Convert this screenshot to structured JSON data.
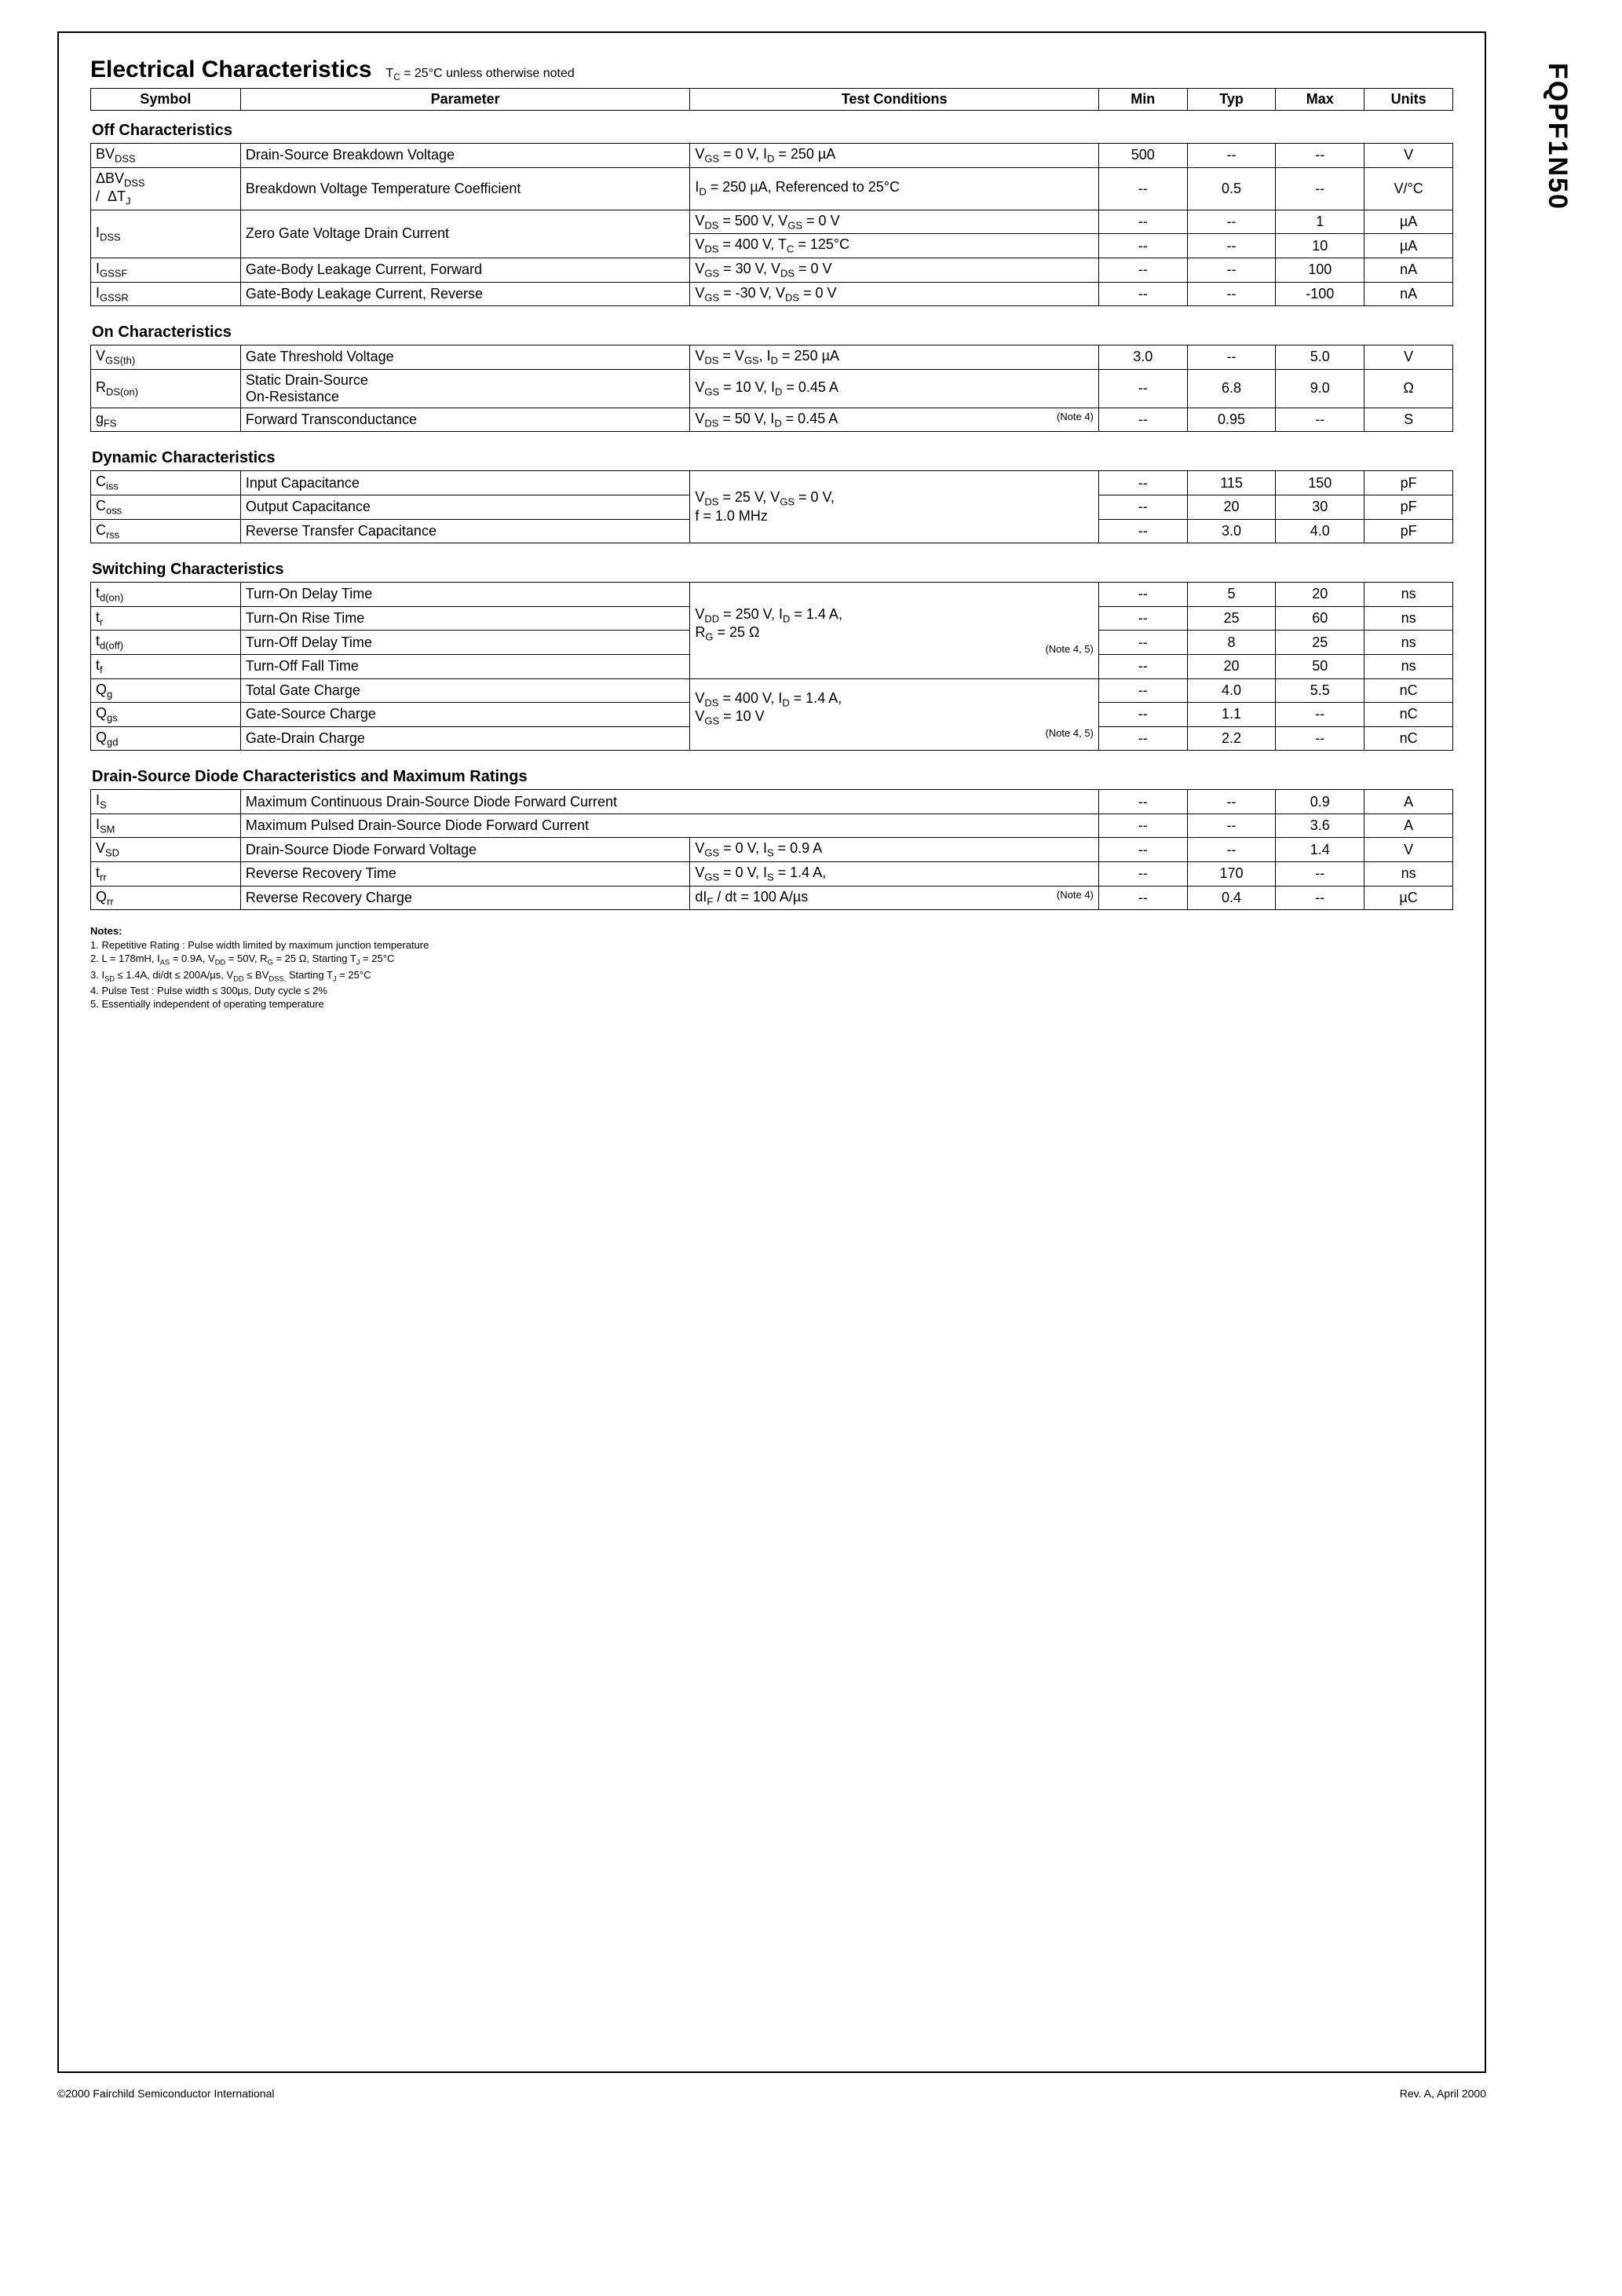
{
  "part_number": "FQPF1N50",
  "title": "Electrical Characteristics",
  "title_condition": "T_C = 25°C unless otherwise noted",
  "header": {
    "symbol": "Symbol",
    "parameter": "Parameter",
    "test_conditions": "Test Conditions",
    "min": "Min",
    "typ": "Typ",
    "max": "Max",
    "units": "Units"
  },
  "sections": {
    "off": {
      "title": "Off Characteristics"
    },
    "on": {
      "title": "On Characteristics"
    },
    "dyn": {
      "title": "Dynamic Characteristics"
    },
    "sw": {
      "title": "Switching Characteristics"
    },
    "diode": {
      "title": "Drain-Source Diode Characteristics and Maximum Ratings"
    }
  },
  "rows": {
    "bvdss": {
      "symbol": "BV_DSS",
      "param": "Drain-Source Breakdown Voltage",
      "cond": "V_GS = 0 V, I_D = 250 µA",
      "min": "500",
      "typ": "--",
      "max": "--",
      "units": "V"
    },
    "dbvdss": {
      "symbol": "ΔBV_DSS / ΔT_J",
      "param": "Breakdown Voltage Temperature Coefficient",
      "cond": "I_D = 250 µA, Referenced to 25°C",
      "min": "--",
      "typ": "0.5",
      "max": "--",
      "units": "V/°C"
    },
    "idss1": {
      "symbol": "I_DSS",
      "param": "Zero Gate Voltage Drain Current",
      "cond": "V_DS = 500 V, V_GS = 0 V",
      "min": "--",
      "typ": "--",
      "max": "1",
      "units": "µA"
    },
    "idss2": {
      "cond": "V_DS = 400 V, T_C = 125°C",
      "min": "--",
      "typ": "--",
      "max": "10",
      "units": "µA"
    },
    "igssf": {
      "symbol": "I_GSSF",
      "param": "Gate-Body Leakage Current, Forward",
      "cond": "V_GS = 30 V, V_DS = 0 V",
      "min": "--",
      "typ": "--",
      "max": "100",
      "units": "nA"
    },
    "igssr": {
      "symbol": "I_GSSR",
      "param": "Gate-Body Leakage Current, Reverse",
      "cond": "V_GS = -30 V, V_DS = 0 V",
      "min": "--",
      "typ": "--",
      "max": "-100",
      "units": "nA"
    },
    "vgsth": {
      "symbol": "V_GS(th)",
      "param": "Gate Threshold Voltage",
      "cond": "V_DS = V_GS, I_D = 250 µA",
      "min": "3.0",
      "typ": "--",
      "max": "5.0",
      "units": "V"
    },
    "rdson": {
      "symbol": "R_DS(on)",
      "param": "Static Drain-Source On-Resistance",
      "cond": "V_GS = 10 V, I_D = 0.45 A",
      "min": "--",
      "typ": "6.8",
      "max": "9.0",
      "units": "Ω"
    },
    "gfs": {
      "symbol": "g_FS",
      "param": "Forward Transconductance",
      "cond": "V_DS = 50 V, I_D = 0.45 A",
      "note": "(Note 4)",
      "min": "--",
      "typ": "0.95",
      "max": "--",
      "units": "S"
    },
    "ciss": {
      "symbol": "C_iss",
      "param": "Input Capacitance",
      "min": "--",
      "typ": "115",
      "max": "150",
      "units": "pF"
    },
    "coss": {
      "symbol": "C_oss",
      "param": "Output Capacitance",
      "min": "--",
      "typ": "20",
      "max": "30",
      "units": "pF"
    },
    "crss": {
      "symbol": "C_rss",
      "param": "Reverse Transfer Capacitance",
      "min": "--",
      "typ": "3.0",
      "max": "4.0",
      "units": "pF"
    },
    "dyn_cond_1": "V_DS = 25 V, V_GS = 0 V,",
    "dyn_cond_2": "f = 1.0 MHz",
    "tdon": {
      "symbol": "t_d(on)",
      "param": "Turn-On Delay Time",
      "min": "--",
      "typ": "5",
      "max": "20",
      "units": "ns"
    },
    "tr": {
      "symbol": "t_r",
      "param": "Turn-On Rise Time",
      "min": "--",
      "typ": "25",
      "max": "60",
      "units": "ns"
    },
    "tdoff": {
      "symbol": "t_d(off)",
      "param": "Turn-Off Delay Time",
      "min": "--",
      "typ": "8",
      "max": "25",
      "units": "ns"
    },
    "tf": {
      "symbol": "t_f",
      "param": "Turn-Off Fall Time",
      "min": "--",
      "typ": "20",
      "max": "50",
      "units": "ns"
    },
    "sw_cond_1": "V_DD = 250 V, I_D = 1.4 A,",
    "sw_cond_2": "R_G = 25 Ω",
    "sw_note": "(Note 4, 5)",
    "qg": {
      "symbol": "Q_g",
      "param": "Total Gate Charge",
      "min": "--",
      "typ": "4.0",
      "max": "5.5",
      "units": "nC"
    },
    "qgs": {
      "symbol": "Q_gs",
      "param": "Gate-Source Charge",
      "min": "--",
      "typ": "1.1",
      "max": "--",
      "units": "nC"
    },
    "qgd": {
      "symbol": "Q_gd",
      "param": "Gate-Drain Charge",
      "min": "--",
      "typ": "2.2",
      "max": "--",
      "units": "nC"
    },
    "q_cond_1": "V_DS = 400 V, I_D = 1.4 A,",
    "q_cond_2": "V_GS = 10 V",
    "q_note": "(Note 4, 5)",
    "is": {
      "symbol": "I_S",
      "param": "Maximum Continuous Drain-Source Diode Forward Current",
      "min": "--",
      "typ": "--",
      "max": "0.9",
      "units": "A"
    },
    "ism": {
      "symbol": "I_SM",
      "param": "Maximum Pulsed Drain-Source Diode Forward Current",
      "min": "--",
      "typ": "--",
      "max": "3.6",
      "units": "A"
    },
    "vsd": {
      "symbol": "V_SD",
      "param": "Drain-Source Diode Forward Voltage",
      "cond": "V_GS = 0 V, I_S = 0.9 A",
      "min": "--",
      "typ": "--",
      "max": "1.4",
      "units": "V"
    },
    "trr": {
      "symbol": "t_rr",
      "param": "Reverse Recovery Time",
      "cond": "V_GS = 0 V, I_S = 1.4 A,",
      "min": "--",
      "typ": "170",
      "max": "--",
      "units": "ns"
    },
    "qrr": {
      "symbol": "Q_rr",
      "param": "Reverse Recovery Charge",
      "cond": "dI_F / dt = 100 A/µs",
      "note": "(Note 4)",
      "min": "--",
      "typ": "0.4",
      "max": "--",
      "units": "µC"
    }
  },
  "notes": {
    "title": "Notes:",
    "n1": "1. Repetitive Rating : Pulse width limited by maximum junction temperature",
    "n2": "2. L = 178mH, I_AS = 0.9A, V_DD = 50V, R_G = 25 Ω, Starting T_J = 25°C",
    "n3": "3. I_SD ≤ 1.4A, di/dt ≤ 200A/µs, V_DD ≤ BV_DSS, Starting T_J = 25°C",
    "n4": "4. Pulse Test : Pulse width ≤ 300µs, Duty cycle ≤ 2%",
    "n5": "5. Essentially independent of operating temperature"
  },
  "footer": {
    "left": "©2000 Fairchild Semiconductor International",
    "right": "Rev. A, April 2000"
  }
}
